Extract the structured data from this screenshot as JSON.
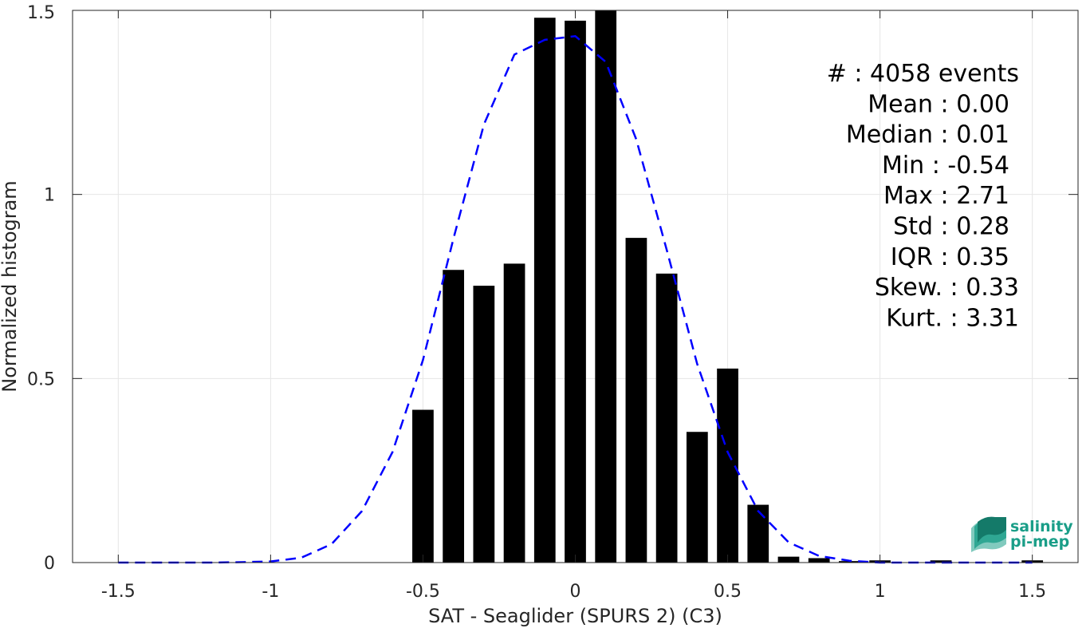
{
  "chart_data": {
    "type": "bar",
    "xlabel": "SAT - Seaglider (SPURS 2) (C3)",
    "ylabel": "Normalized histogram",
    "xlim": [
      -1.65,
      1.65
    ],
    "ylim": [
      0,
      1.5
    ],
    "xticks": [
      "-1.5",
      "-1",
      "-0.5",
      "0",
      "0.5",
      "1",
      "1.5"
    ],
    "yticks": [
      "0",
      "0.5",
      "1",
      "1.5"
    ],
    "grid": true,
    "bar_color": "#000000",
    "bar_width": 0.07,
    "bins": [
      {
        "x": -0.5,
        "y": 0.415
      },
      {
        "x": -0.4,
        "y": 0.795
      },
      {
        "x": -0.3,
        "y": 0.752
      },
      {
        "x": -0.2,
        "y": 0.812
      },
      {
        "x": -0.1,
        "y": 1.48
      },
      {
        "x": 0.0,
        "y": 1.472
      },
      {
        "x": 0.1,
        "y": 1.5
      },
      {
        "x": 0.2,
        "y": 0.882
      },
      {
        "x": 0.3,
        "y": 0.785
      },
      {
        "x": 0.4,
        "y": 0.355
      },
      {
        "x": 0.5,
        "y": 0.527
      },
      {
        "x": 0.6,
        "y": 0.157
      },
      {
        "x": 0.7,
        "y": 0.016
      },
      {
        "x": 0.8,
        "y": 0.012
      },
      {
        "x": 0.9,
        "y": 0.004
      },
      {
        "x": 1.0,
        "y": 0.006
      },
      {
        "x": 1.2,
        "y": 0.006
      },
      {
        "x": 1.5,
        "y": 0.006
      }
    ],
    "fit_curve": {
      "type": "gaussian",
      "color": "#0000ff",
      "style": "dashed",
      "x": [
        -1.5,
        -1.4,
        -1.3,
        -1.2,
        -1.1,
        -1.0,
        -0.9,
        -0.8,
        -0.7,
        -0.6,
        -0.5,
        -0.4,
        -0.3,
        -0.2,
        -0.1,
        0.0,
        0.1,
        0.2,
        0.3,
        0.4,
        0.5,
        0.6,
        0.7,
        0.8,
        0.9,
        1.0,
        1.1,
        1.2,
        1.3,
        1.4,
        1.5
      ],
      "y": [
        0.0,
        0.0,
        0.0,
        0.0,
        0.001,
        0.003,
        0.013,
        0.05,
        0.14,
        0.3,
        0.55,
        0.88,
        1.19,
        1.38,
        1.42,
        1.43,
        1.36,
        1.15,
        0.85,
        0.54,
        0.3,
        0.14,
        0.055,
        0.018,
        0.005,
        0.0,
        0.0,
        0.0,
        0.0,
        0.0,
        0.0
      ]
    },
    "stats": [
      "#  : 4058 events",
      "Mean : 0.00",
      "Median : 0.01",
      "Min : -0.54",
      "Max : 2.71",
      "Std : 0.28",
      "IQR : 0.35",
      "Skew. : 0.33",
      "Kurt. : 3.31"
    ]
  },
  "logo": {
    "line1": "salinity",
    "line2": "pi-mep",
    "color": "#1a9e88"
  }
}
